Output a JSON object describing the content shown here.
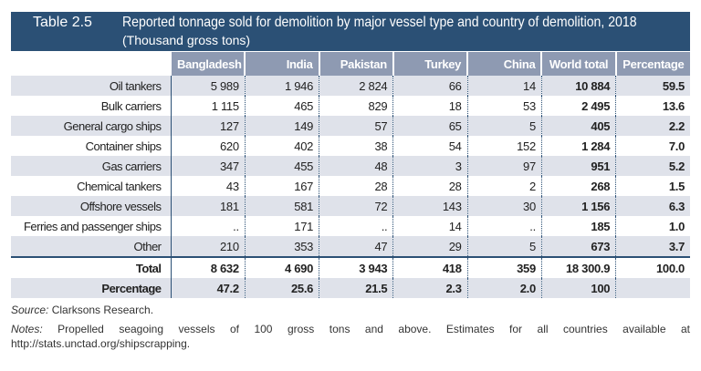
{
  "header": {
    "table_number": "Table 2.5",
    "title": "Reported tonnage sold for demolition by major vessel type and country of demolition, 2018",
    "subtitle": "(Thousand gross tons)",
    "color": "#2b5075"
  },
  "columns": [
    "Bangladesh",
    "India",
    "Pakistan",
    "Turkey",
    "China",
    "World total",
    "Percentage"
  ],
  "rows": [
    {
      "label": "Oil tankers",
      "values": [
        "5 989",
        "1 946",
        "2 824",
        "66",
        "14",
        "10 884",
        "59.5"
      ]
    },
    {
      "label": "Bulk carriers",
      "values": [
        "1 115",
        "465",
        "829",
        "18",
        "53",
        "2 495",
        "13.6"
      ]
    },
    {
      "label": "General cargo ships",
      "values": [
        "127",
        "149",
        "57",
        "65",
        "5",
        "405",
        "2.2"
      ]
    },
    {
      "label": "Container ships",
      "values": [
        "620",
        "402",
        "38",
        "54",
        "152",
        "1 284",
        "7.0"
      ]
    },
    {
      "label": "Gas carriers",
      "values": [
        "347",
        "455",
        "48",
        "3",
        "97",
        "951",
        "5.2"
      ]
    },
    {
      "label": "Chemical tankers",
      "values": [
        "43",
        "167",
        "28",
        "28",
        "2",
        "268",
        "1.5"
      ]
    },
    {
      "label": "Offshore vessels",
      "values": [
        "181",
        "581",
        "72",
        "143",
        "30",
        "1 156",
        "6.3"
      ]
    },
    {
      "label": "Ferries and passenger ships",
      "values": [
        "..",
        "171",
        "..",
        "14",
        "..",
        "185",
        "1.0"
      ]
    },
    {
      "label": "Other",
      "values": [
        "210",
        "353",
        "47",
        "29",
        "5",
        "673",
        "3.7"
      ]
    }
  ],
  "total": {
    "label": "Total",
    "values": [
      "8 632",
      "4 690",
      "3 943",
      "418",
      "359",
      "18 300.9",
      "100.0"
    ]
  },
  "percentage": {
    "label": "Percentage",
    "values": [
      "47.2",
      "25.6",
      "21.5",
      "2.3",
      "2.0",
      "100",
      ""
    ]
  },
  "footer": {
    "source_label": "Source:",
    "source_text": " Clarksons Research.",
    "notes_label": "Notes:",
    "notes_text": " Propelled seagoing vessels of 100 gross tons and above. Estimates for all countries available at http://stats.unctad.org/shipscrapping."
  }
}
